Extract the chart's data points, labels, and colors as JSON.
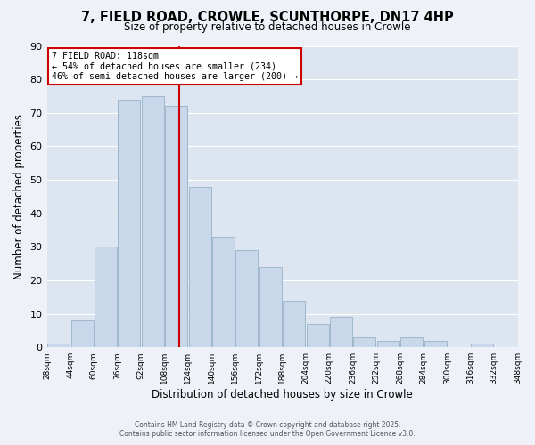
{
  "title": "7, FIELD ROAD, CROWLE, SCUNTHORPE, DN17 4HP",
  "subtitle": "Size of property relative to detached houses in Crowle",
  "xlabel": "Distribution of detached houses by size in Crowle",
  "ylabel": "Number of detached properties",
  "bins": [
    28,
    44,
    60,
    76,
    92,
    108,
    124,
    140,
    156,
    172,
    188,
    204,
    220,
    236,
    252,
    268,
    284,
    300,
    316,
    332,
    348
  ],
  "counts": [
    1,
    8,
    30,
    74,
    75,
    72,
    48,
    33,
    29,
    24,
    14,
    7,
    9,
    3,
    2,
    3,
    2,
    0,
    1,
    0
  ],
  "bar_color": "#c8d8ea",
  "bar_edge_color": "#a0b8cc",
  "ref_line_x": 118,
  "ref_line_color": "#cc0000",
  "annotation_title": "7 FIELD ROAD: 118sqm",
  "annotation_line1": "← 54% of detached houses are smaller (234)",
  "annotation_line2": "46% of semi-detached houses are larger (200) →",
  "annotation_box_color": "white",
  "annotation_box_edge_color": "#cc0000",
  "ylim": [
    0,
    90
  ],
  "yticks": [
    0,
    10,
    20,
    30,
    40,
    50,
    60,
    70,
    80,
    90
  ],
  "tick_labels": [
    "28sqm",
    "44sqm",
    "60sqm",
    "76sqm",
    "92sqm",
    "108sqm",
    "124sqm",
    "140sqm",
    "156sqm",
    "172sqm",
    "188sqm",
    "204sqm",
    "220sqm",
    "236sqm",
    "252sqm",
    "268sqm",
    "284sqm",
    "300sqm",
    "316sqm",
    "332sqm",
    "348sqm"
  ],
  "footer1": "Contains HM Land Registry data © Crown copyright and database right 2025.",
  "footer2": "Contains public sector information licensed under the Open Government Licence v3.0.",
  "bg_color": "#eef2f8",
  "plot_bg_color": "#dde5f0",
  "grid_color": "#ffffff"
}
